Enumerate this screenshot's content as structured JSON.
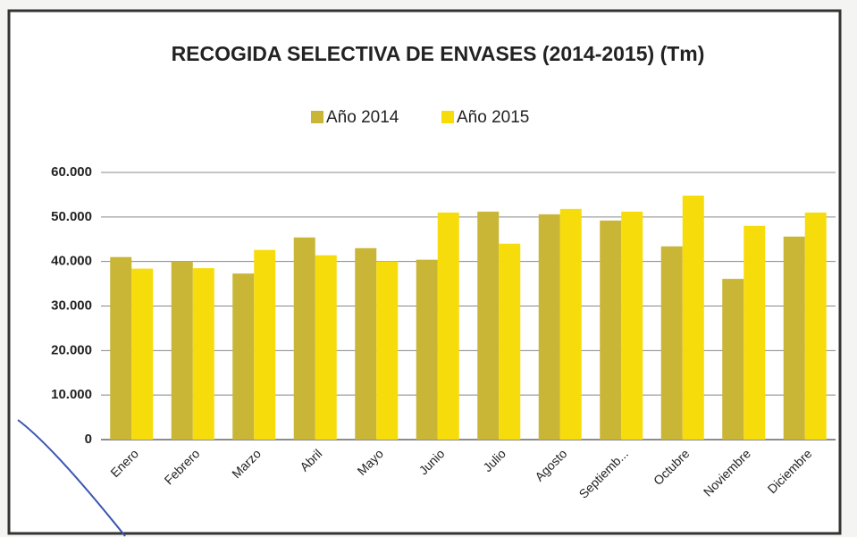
{
  "chart_data": {
    "type": "bar",
    "title": "RECOGIDA SELECTIVA DE ENVASES (2014-2015) (Tm)",
    "categories": [
      "Enero",
      "Febrero",
      "Marzo",
      "Abril",
      "Mayo",
      "Junio",
      "Julio",
      "Agosto",
      "Septiemb...",
      "Octubre",
      "Noviembre",
      "Diciembre"
    ],
    "series": [
      {
        "name": "Año 2014",
        "color": "#c9b536",
        "values": [
          41000,
          40000,
          37300,
          45400,
          43000,
          40400,
          51200,
          50600,
          49200,
          43400,
          36100,
          45600
        ]
      },
      {
        "name": "Año 2015",
        "color": "#f7dc0c",
        "values": [
          38400,
          38500,
          42600,
          41400,
          40000,
          51000,
          44000,
          51800,
          51200,
          54800,
          48000,
          51000
        ]
      }
    ],
    "ylim": [
      0,
      60000
    ],
    "yticks": [
      0,
      {
        "value": 10000,
        "label": "10.000"
      },
      {
        "value": 20000,
        "label": "20.000"
      },
      {
        "value": 30000,
        "label": "30.000"
      },
      {
        "value": 40000,
        "label": "40.000"
      },
      {
        "value": 50000,
        "label": "50.000"
      },
      {
        "value": 60000,
        "label": "60.000"
      }
    ],
    "grid": true,
    "legend": "top"
  }
}
